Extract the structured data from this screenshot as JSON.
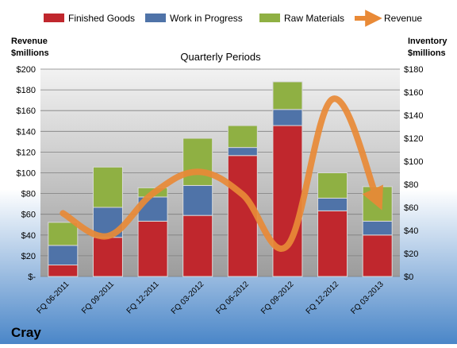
{
  "company": "Cray",
  "colors": {
    "finished_goods": "#c0272d",
    "work_in_progress": "#4f73a8",
    "raw_materials": "#8fb043",
    "revenue": "#e98a37",
    "bg_top": "#ffffff",
    "bg_bottom": "#4a86c8"
  },
  "chart_data": {
    "type": "bar",
    "title": "Quarterly Periods",
    "left_axis_title": [
      "Revenue",
      "$millions"
    ],
    "right_axis_title": [
      "Inventory",
      "$millions"
    ],
    "left_ticks": [
      "$-",
      "$20",
      "$40",
      "$60",
      "$80",
      "$100",
      "$120",
      "$140",
      "$160",
      "$180",
      "$200"
    ],
    "right_ticks": [
      "$0",
      "$20",
      "$40",
      "$60",
      "$80",
      "$100",
      "$120",
      "$140",
      "$160",
      "$180"
    ],
    "left_ylim": [
      0,
      200
    ],
    "right_ylim": [
      0,
      180
    ],
    "stacked": true,
    "grid": true,
    "legend_position": "top",
    "categories": [
      "FQ 06-2011",
      "FQ 09-2011",
      "FQ 12-2011",
      "FQ 03-2012",
      "FQ 06-2012",
      "FQ 09-2012",
      "FQ 12-2012",
      "FQ 03-2013"
    ],
    "series": [
      {
        "name": "Finished Goods",
        "type": "bar",
        "axis": "right",
        "color_key": "finished_goods",
        "values": [
          10,
          34,
          48,
          53,
          105,
          131,
          57,
          36
        ]
      },
      {
        "name": "Work in Progress",
        "type": "bar",
        "axis": "right",
        "color_key": "work_in_progress",
        "values": [
          17,
          26,
          21,
          26,
          7,
          14,
          11,
          12
        ]
      },
      {
        "name": "Raw Materials",
        "type": "bar",
        "axis": "right",
        "color_key": "raw_materials",
        "values": [
          20,
          35,
          8,
          41,
          19,
          24,
          22,
          30
        ]
      },
      {
        "name": "Revenue",
        "type": "line",
        "axis": "left",
        "color_key": "revenue",
        "values": [
          61,
          39,
          80,
          101,
          79,
          30,
          171,
          74
        ]
      }
    ]
  }
}
